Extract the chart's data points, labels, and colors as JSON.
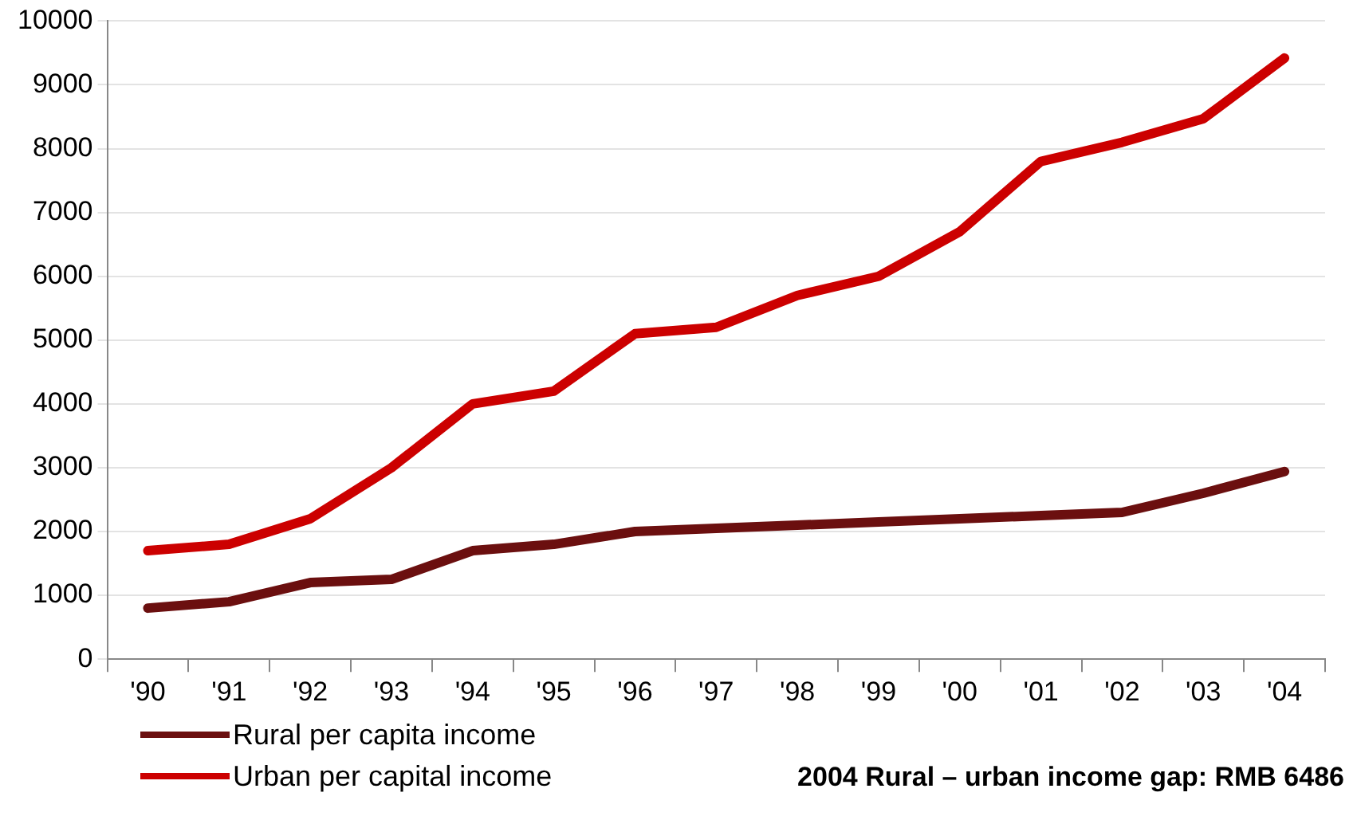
{
  "chart_data": {
    "type": "line",
    "categories": [
      "'90",
      "'91",
      "'92",
      "'93",
      "'94",
      "'95",
      "'96",
      "'97",
      "'98",
      "'99",
      "'00",
      "'01",
      "'02",
      "'03",
      "'04"
    ],
    "series": [
      {
        "name": "Rural per capita income",
        "color": "#6b0f0f",
        "values": [
          800,
          900,
          1200,
          1250,
          1700,
          1800,
          2000,
          2050,
          2100,
          2150,
          2200,
          2250,
          2300,
          2600,
          2940
        ]
      },
      {
        "name": "Urban per capital income",
        "color": "#cc0000",
        "values": [
          1700,
          1800,
          2200,
          3000,
          4000,
          4200,
          5100,
          5200,
          5700,
          6000,
          6700,
          7800,
          8100,
          8470,
          9420
        ]
      }
    ],
    "ylim": [
      0,
      10000
    ],
    "yticks": [
      0,
      1000,
      2000,
      3000,
      4000,
      5000,
      6000,
      7000,
      8000,
      9000,
      10000
    ],
    "grid": "y",
    "legend": "bottom left",
    "marker": "none",
    "line_style": "solid",
    "annotations": [
      "2004 Rural – urban income gap: RMB 6486"
    ]
  }
}
